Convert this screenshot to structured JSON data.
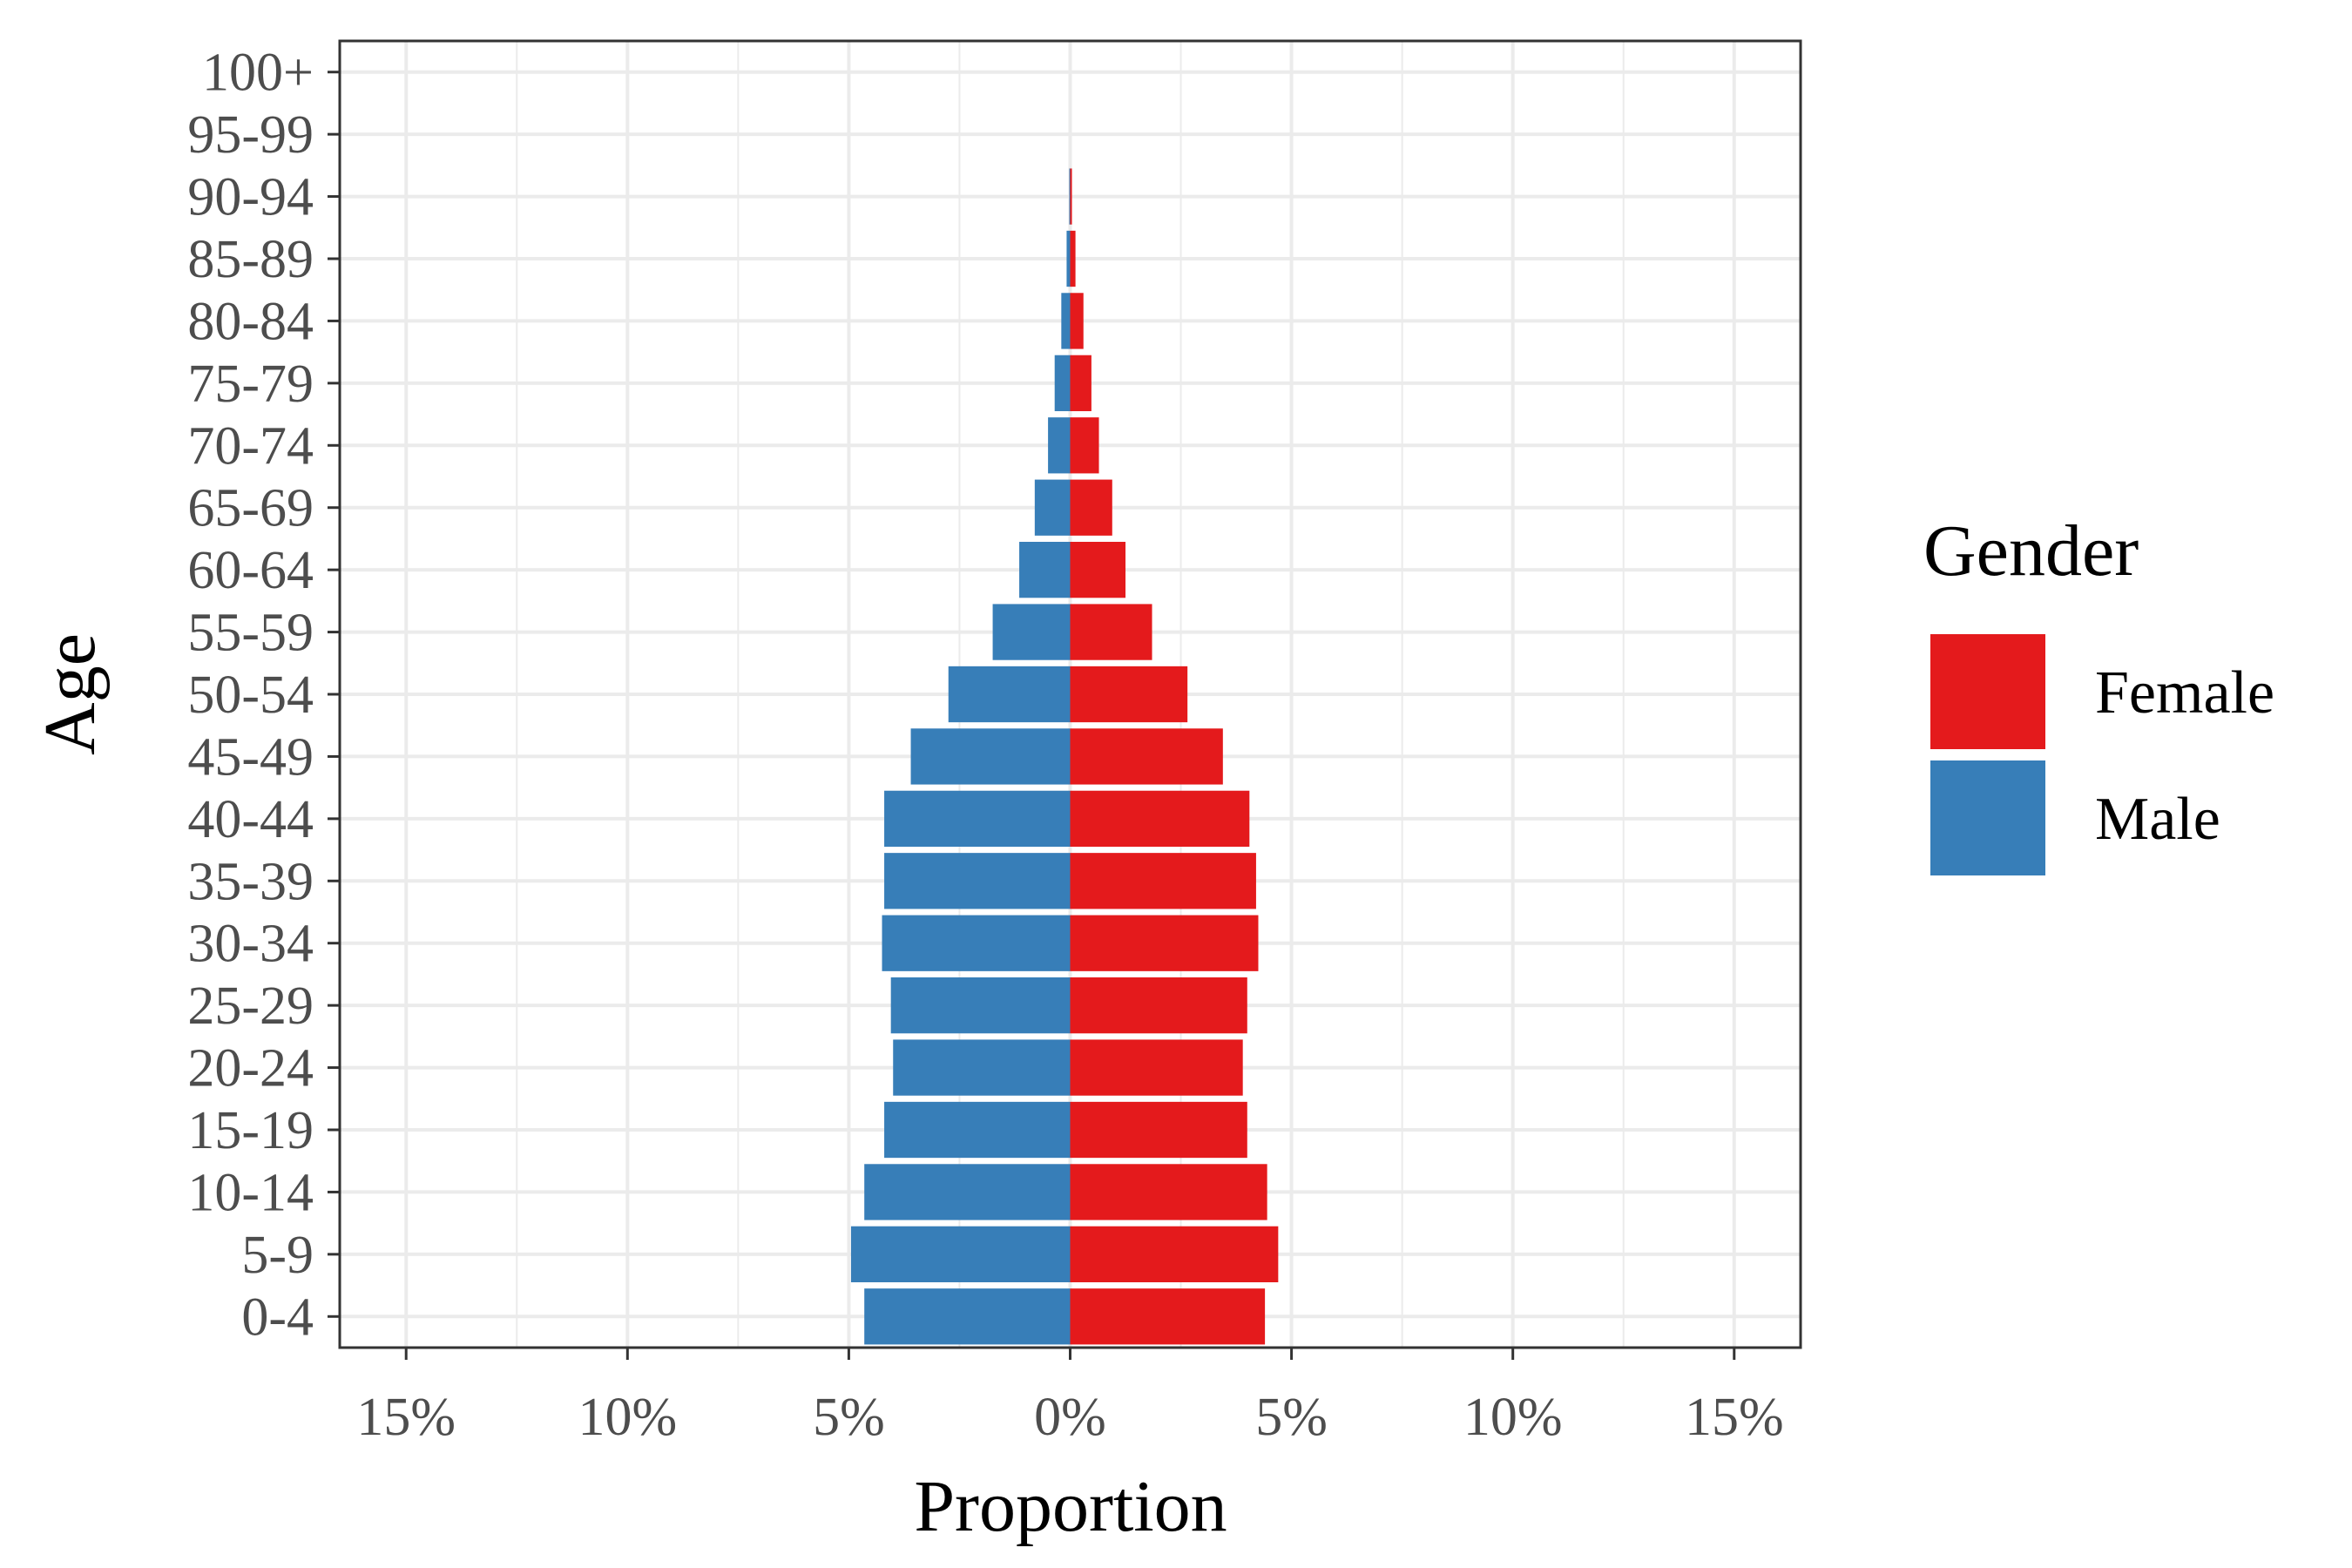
{
  "chart_data": {
    "type": "bar",
    "orientation": "horizontal-diverging",
    "title": "",
    "xlabel": "Proportion",
    "ylabel": "Age",
    "xlim": [
      -16.5,
      16.5
    ],
    "x_ticks": [
      -15,
      -10,
      -5,
      0,
      5,
      10,
      15
    ],
    "x_tick_labels": [
      "15%",
      "10%",
      "5%",
      "0%",
      "5%",
      "10%",
      "15%"
    ],
    "grid": true,
    "legend": {
      "title": "Gender",
      "position": "right",
      "entries": [
        "Female",
        "Male"
      ]
    },
    "categories": [
      "0-4",
      "5-9",
      "10-14",
      "15-19",
      "20-24",
      "25-29",
      "30-34",
      "35-39",
      "40-44",
      "45-49",
      "50-54",
      "55-59",
      "60-64",
      "65-69",
      "70-74",
      "75-79",
      "80-84",
      "85-89",
      "90-94",
      "95-99",
      "100+"
    ],
    "series": [
      {
        "name": "Female",
        "color": "#e41a1c",
        "values": [
          4.4,
          4.7,
          4.45,
          4.0,
          3.9,
          4.0,
          4.25,
          4.2,
          4.05,
          3.45,
          2.65,
          1.85,
          1.25,
          0.95,
          0.65,
          0.48,
          0.3,
          0.12,
          0.04,
          0.0,
          0.0
        ]
      },
      {
        "name": "Male",
        "color": "#377eb8",
        "values": [
          4.65,
          4.95,
          4.65,
          4.2,
          4.0,
          4.05,
          4.25,
          4.2,
          4.2,
          3.6,
          2.75,
          1.75,
          1.15,
          0.8,
          0.5,
          0.35,
          0.2,
          0.08,
          0.02,
          0.0,
          0.0
        ]
      }
    ]
  }
}
